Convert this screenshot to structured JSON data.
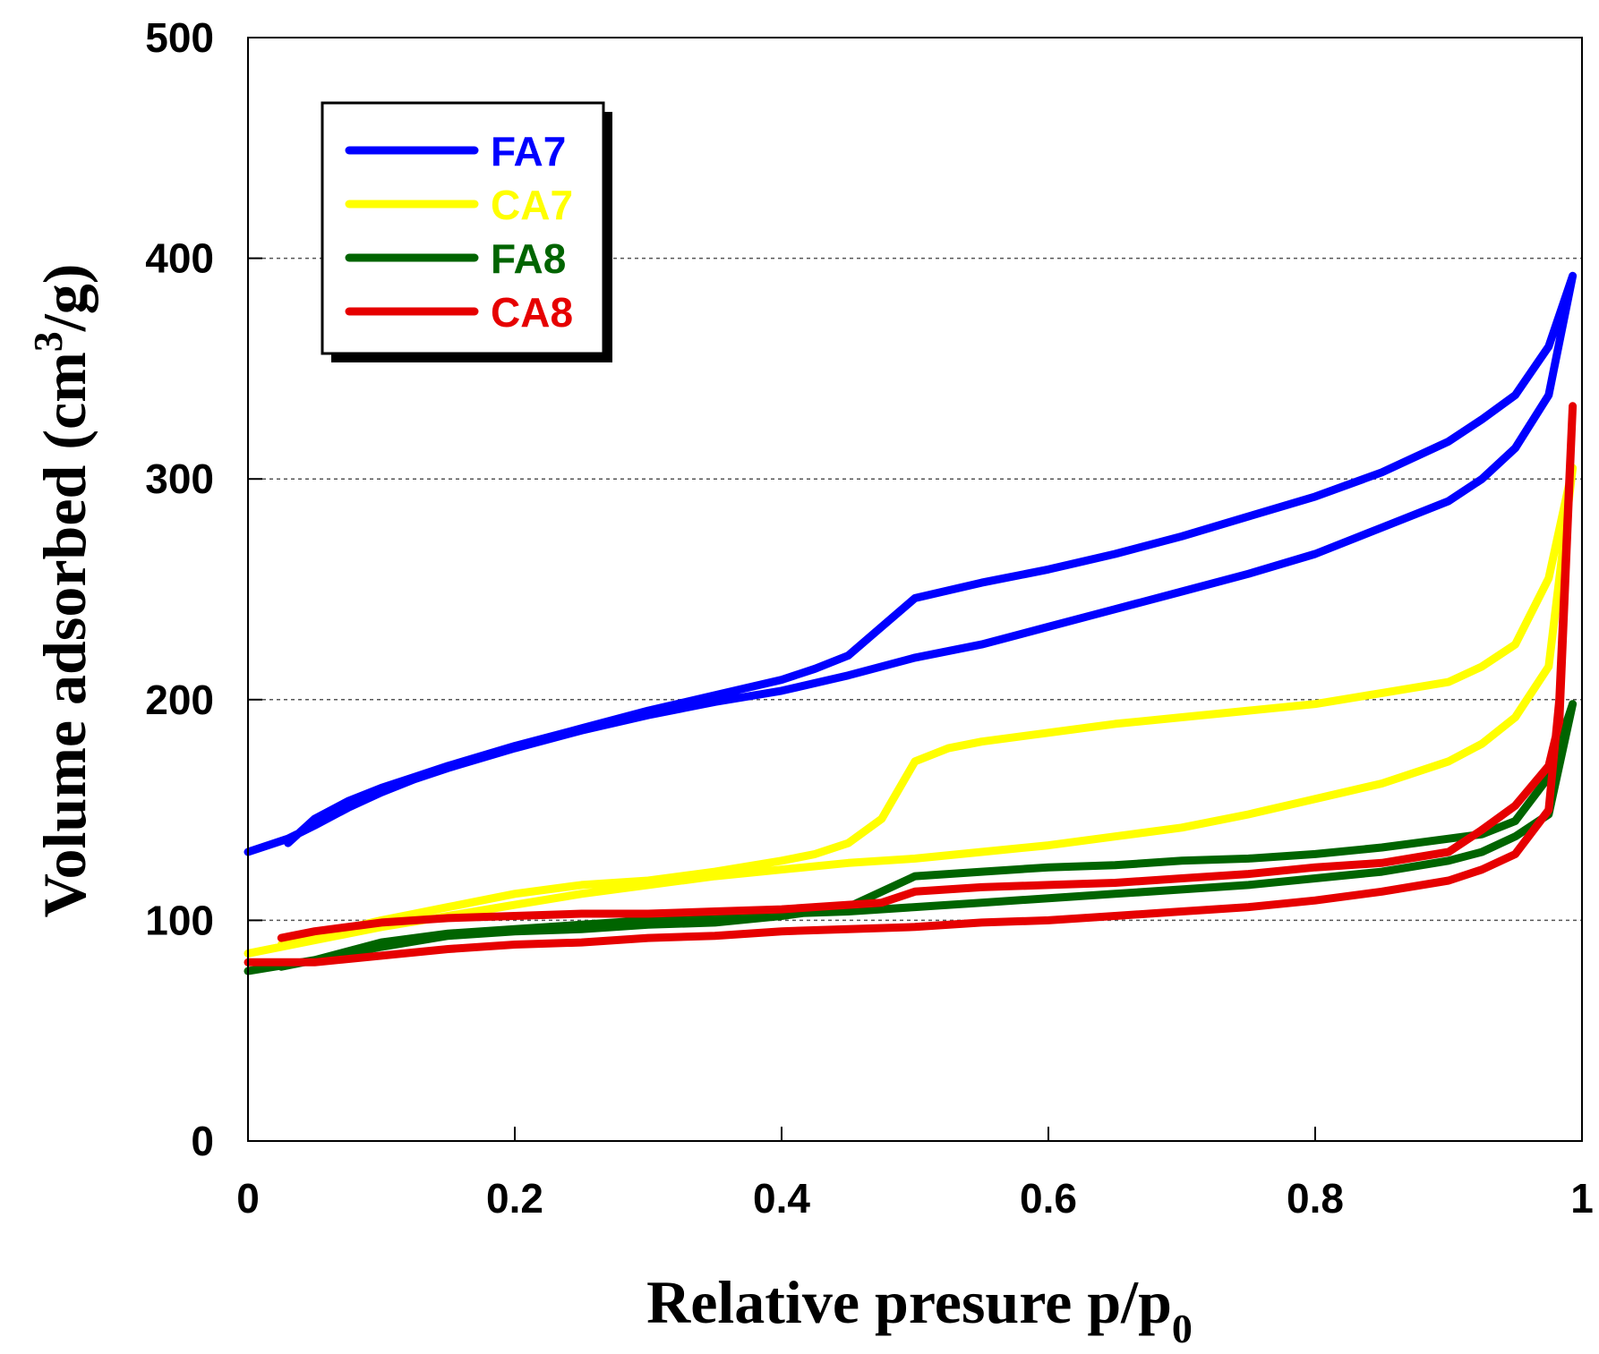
{
  "chart_data": {
    "type": "line",
    "xlabel": "Relative presure p/p",
    "xlabel_sub": "0",
    "ylabel_main": "Volume adsorbed (cm",
    "ylabel_sup": "3",
    "ylabel_tail": "/g)",
    "xlim": [
      0,
      1
    ],
    "ylim": [
      0,
      500
    ],
    "xticks": [
      0,
      0.2,
      0.4,
      0.6,
      0.8,
      1
    ],
    "xtick_labels": [
      "0",
      "0.2",
      "0.4",
      "0.6",
      "0.8",
      "1"
    ],
    "yticks": [
      0,
      100,
      200,
      300,
      400,
      500
    ],
    "ytick_labels": [
      "0",
      "100",
      "200",
      "300",
      "400",
      "500"
    ],
    "grid": "horizontal dashed",
    "legend_position": "top-left",
    "series": [
      {
        "name": "FA7",
        "color": "#0000ff",
        "x": [
          0,
          0.03,
          0.05,
          0.075,
          0.1,
          0.125,
          0.15,
          0.2,
          0.25,
          0.3,
          0.35,
          0.4,
          0.45,
          0.5,
          0.55,
          0.6,
          0.65,
          0.7,
          0.75,
          0.8,
          0.85,
          0.9,
          0.925,
          0.95,
          0.975,
          0.993,
          0.975,
          0.95,
          0.925,
          0.9,
          0.85,
          0.8,
          0.75,
          0.7,
          0.65,
          0.6,
          0.55,
          0.5,
          0.475,
          0.45,
          0.425,
          0.4,
          0.35,
          0.3,
          0.25,
          0.2,
          0.15,
          0.125,
          0.1,
          0.075,
          0.05,
          0.03
        ],
        "y": [
          131,
          137,
          143,
          151,
          158,
          164,
          169,
          178,
          186,
          193,
          199,
          204,
          211,
          219,
          225,
          233,
          241,
          249,
          257,
          266,
          278,
          290,
          300,
          314,
          338,
          392,
          360,
          338,
          327,
          317,
          303,
          292,
          283,
          274,
          266,
          259,
          253,
          246,
          233,
          220,
          214,
          209,
          202,
          195,
          187,
          179,
          170,
          165,
          160,
          154,
          146,
          135
        ]
      },
      {
        "name": "CA7",
        "color": "#ffff00",
        "x": [
          0,
          0.05,
          0.1,
          0.15,
          0.2,
          0.25,
          0.3,
          0.35,
          0.4,
          0.45,
          0.5,
          0.55,
          0.6,
          0.65,
          0.7,
          0.75,
          0.8,
          0.85,
          0.9,
          0.925,
          0.95,
          0.975,
          0.993,
          0.975,
          0.95,
          0.925,
          0.9,
          0.85,
          0.8,
          0.75,
          0.7,
          0.65,
          0.6,
          0.55,
          0.525,
          0.5,
          0.475,
          0.45,
          0.425,
          0.4,
          0.35,
          0.3,
          0.25,
          0.2,
          0.15,
          0.1,
          0.05,
          0.025
        ],
        "y": [
          85,
          91,
          97,
          102,
          107,
          112,
          116,
          120,
          123,
          126,
          128,
          131,
          134,
          138,
          142,
          148,
          155,
          162,
          172,
          180,
          192,
          215,
          305,
          255,
          225,
          215,
          208,
          203,
          198,
          195,
          192,
          189,
          185,
          181,
          178,
          172,
          146,
          135,
          130,
          127,
          122,
          118,
          116,
          112,
          106,
          100,
          93,
          89
        ]
      },
      {
        "name": "FA8",
        "color": "#006400",
        "x": [
          0,
          0.05,
          0.1,
          0.15,
          0.2,
          0.25,
          0.3,
          0.35,
          0.4,
          0.45,
          0.5,
          0.55,
          0.6,
          0.65,
          0.7,
          0.75,
          0.8,
          0.85,
          0.9,
          0.925,
          0.95,
          0.975,
          0.993,
          0.975,
          0.95,
          0.925,
          0.9,
          0.85,
          0.8,
          0.75,
          0.7,
          0.65,
          0.6,
          0.55,
          0.5,
          0.475,
          0.45,
          0.4,
          0.35,
          0.3,
          0.25,
          0.2,
          0.15,
          0.1,
          0.05,
          0.025
        ],
        "y": [
          77,
          82,
          90,
          94,
          96,
          98,
          100,
          101,
          103,
          104,
          106,
          108,
          110,
          112,
          114,
          116,
          119,
          122,
          127,
          131,
          138,
          148,
          198,
          165,
          145,
          139,
          137,
          133,
          130,
          128,
          127,
          125,
          124,
          122,
          120,
          113,
          106,
          102,
          99,
          98,
          96,
          95,
          93,
          88,
          82,
          79
        ]
      },
      {
        "name": "CA8",
        "color": "#e60000",
        "x": [
          0,
          0.05,
          0.1,
          0.15,
          0.2,
          0.25,
          0.3,
          0.35,
          0.4,
          0.45,
          0.5,
          0.55,
          0.6,
          0.65,
          0.7,
          0.75,
          0.8,
          0.85,
          0.9,
          0.925,
          0.95,
          0.975,
          0.983,
          0.993,
          0.983,
          0.975,
          0.95,
          0.925,
          0.9,
          0.85,
          0.8,
          0.75,
          0.7,
          0.65,
          0.6,
          0.55,
          0.5,
          0.475,
          0.45,
          0.4,
          0.35,
          0.3,
          0.25,
          0.2,
          0.15,
          0.1,
          0.05,
          0.025
        ],
        "y": [
          81,
          81,
          84,
          87,
          89,
          90,
          92,
          93,
          95,
          96,
          97,
          99,
          100,
          102,
          104,
          106,
          109,
          113,
          118,
          123,
          130,
          150,
          200,
          333,
          190,
          170,
          152,
          141,
          131,
          126,
          124,
          121,
          119,
          117,
          116,
          115,
          113,
          108,
          107,
          105,
          104,
          103,
          103,
          102,
          101,
          99,
          95,
          92
        ]
      }
    ]
  }
}
